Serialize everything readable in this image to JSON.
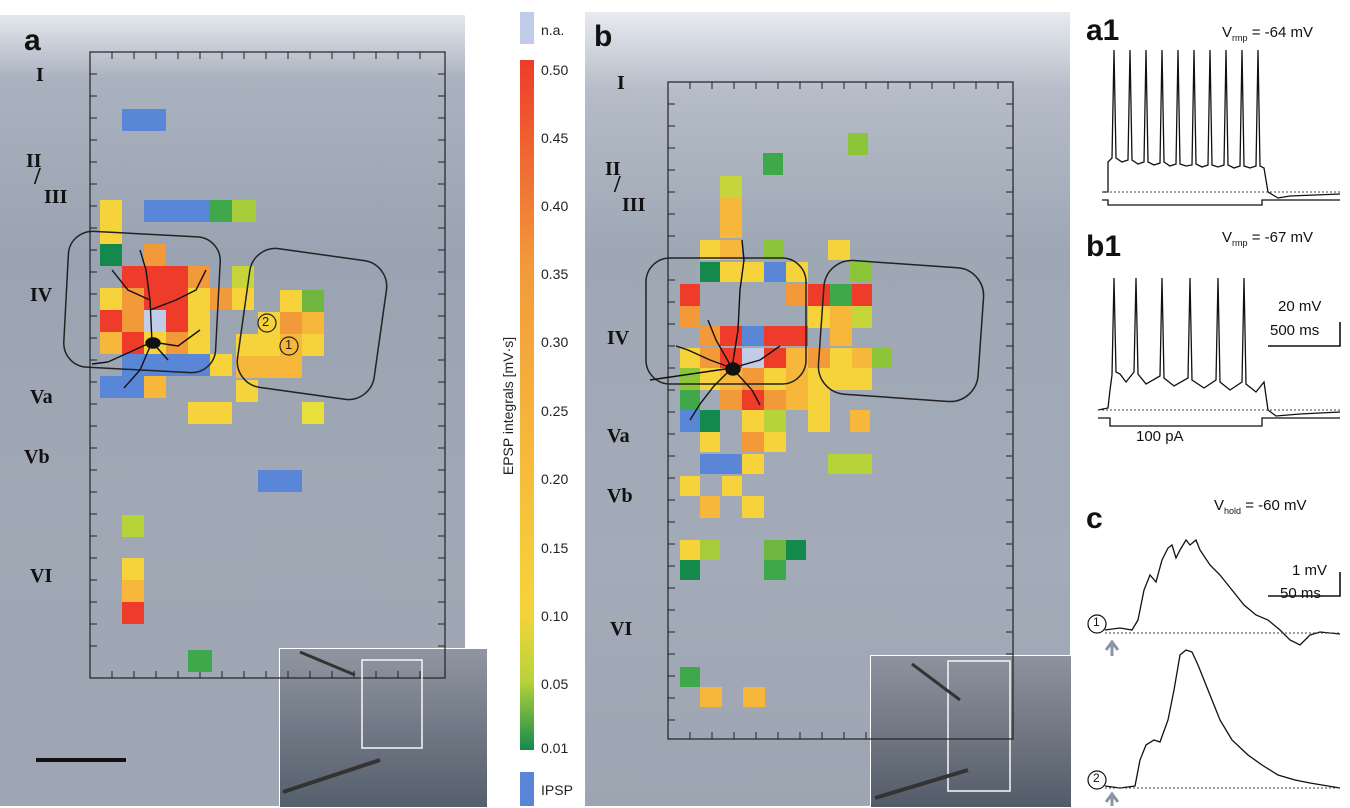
{
  "panels": {
    "a": "a",
    "b": "b",
    "a1": "a1",
    "b1": "b1",
    "c": "c"
  },
  "layers_a": [
    "I",
    "II",
    "III",
    "IV",
    "Va",
    "Vb",
    "VI"
  ],
  "layers_b": [
    "I",
    "II",
    "III",
    "IV",
    "Va",
    "Vb",
    "VI"
  ],
  "colorbar": {
    "title": "EPSP integrals [mV·s]",
    "ticks": [
      "0.50",
      "0.45",
      "0.40",
      "0.35",
      "0.30",
      "0.25",
      "0.20",
      "0.15",
      "0.10",
      "0.05",
      "0.01"
    ],
    "na_label": "n.a.",
    "ipsp_label": "IPSP",
    "colors": {
      "na": "#c0cce8",
      "ipsp": "#5a86d8"
    }
  },
  "traces": {
    "a1_vrmp": "= -64 mV",
    "b1_vrmp": "= -67 mV",
    "c_vhold": "= -60 mV",
    "v_letter": "V",
    "rmp_sub": "rmp",
    "hold_sub": "hold",
    "scale1_v": "20 mV",
    "scale1_t": "500 ms",
    "current": "100 pA",
    "scale2_v": "1 mV",
    "scale2_t": "50 ms",
    "marker1": "1",
    "marker2": "2"
  },
  "markers_a": [
    "2",
    "1"
  ]
}
